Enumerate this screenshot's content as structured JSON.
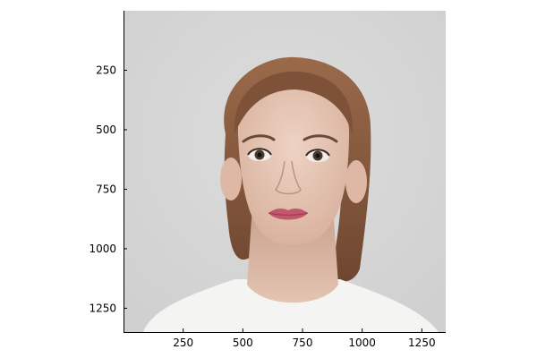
{
  "chart_data": {
    "type": "image",
    "image": {
      "description_icon": "portrait-photo",
      "background_color": "#d6d7d6",
      "skin_color": "#e8c8b6",
      "hair_color": "#8a5a3c",
      "shirt_color": "#f4f4f3",
      "lip_color": "#c2566a"
    },
    "x_axis": {
      "range": [
        0,
        1350
      ],
      "ticks": [
        250,
        500,
        750,
        1000,
        1250
      ],
      "tick_labels": [
        "250",
        "500",
        "750",
        "1000",
        "1250"
      ]
    },
    "y_axis": {
      "range": [
        0,
        1350
      ],
      "inverted": true,
      "ticks": [
        250,
        500,
        750,
        1000,
        1250
      ],
      "tick_labels": [
        "250",
        "500",
        "750",
        "1000",
        "1250"
      ]
    },
    "grid": false,
    "legend": "none"
  }
}
